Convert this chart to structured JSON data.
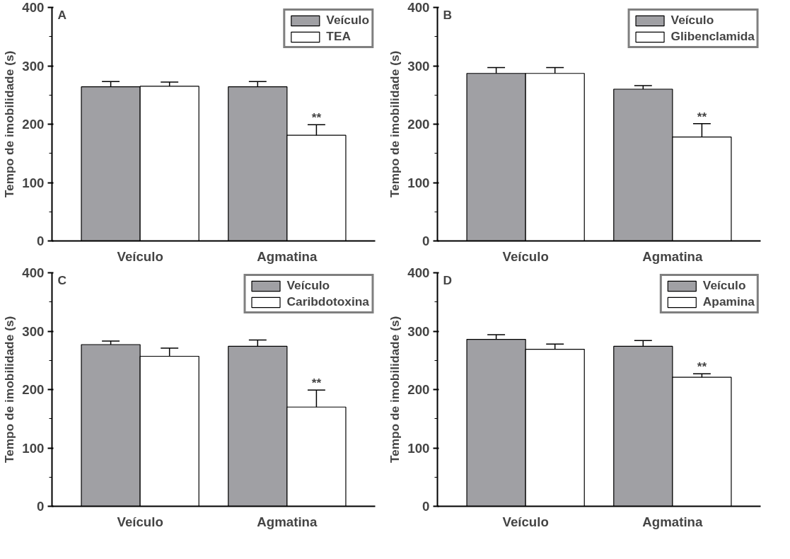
{
  "chart_data": [
    {
      "type": "bar",
      "title": "A",
      "ylabel": "Tempo de imobilidade (s)",
      "categories": [
        "Veículo",
        "Agmatina"
      ],
      "ylim": [
        0,
        400
      ],
      "yticks": [
        0,
        100,
        200,
        300,
        400
      ],
      "grid": false,
      "legend": "top right",
      "annotations": [
        {
          "text": "**",
          "x": "Agmatina",
          "y": 199
        }
      ],
      "series": [
        {
          "name": "Veículo",
          "color": "#a0a0a4",
          "values": [
            264,
            264
          ],
          "errors": [
            9,
            9
          ]
        },
        {
          "name": "TEA",
          "color": "#ffffff",
          "values": [
            265,
            181
          ],
          "errors": [
            7,
            18
          ]
        }
      ]
    },
    {
      "type": "bar",
      "title": "B",
      "ylabel": "Tempo de imobilidade (s)",
      "categories": [
        "Veículo",
        "Agmatina"
      ],
      "ylim": [
        0,
        400
      ],
      "yticks": [
        0,
        100,
        200,
        300,
        400
      ],
      "grid": false,
      "legend": "top right",
      "annotations": [
        {
          "text": "**",
          "x": "Agmatina",
          "y": 201
        }
      ],
      "series": [
        {
          "name": "Veículo",
          "color": "#a0a0a4",
          "values": [
            287,
            260
          ],
          "errors": [
            10,
            6
          ]
        },
        {
          "name": "Glibenclamida",
          "color": "#ffffff",
          "values": [
            287,
            178
          ],
          "errors": [
            10,
            23
          ]
        }
      ]
    },
    {
      "type": "bar",
      "title": "C",
      "ylabel": "Tempo de imobilidade (s)",
      "categories": [
        "Veículo",
        "Agmatina"
      ],
      "ylim": [
        0,
        400
      ],
      "yticks": [
        0,
        100,
        200,
        300,
        400
      ],
      "grid": false,
      "legend": "top right",
      "annotations": [
        {
          "text": "**",
          "x": "Agmatina",
          "y": 199
        }
      ],
      "series": [
        {
          "name": "Veículo",
          "color": "#a0a0a4",
          "values": [
            277,
            274
          ],
          "errors": [
            6,
            11
          ]
        },
        {
          "name": "Caribdotoxina",
          "color": "#ffffff",
          "values": [
            257,
            170
          ],
          "errors": [
            14,
            29
          ]
        }
      ]
    },
    {
      "type": "bar",
      "title": "D",
      "ylabel": "Tempo de imobilidade (s)",
      "categories": [
        "Veículo",
        "Agmatina"
      ],
      "ylim": [
        0,
        400
      ],
      "yticks": [
        0,
        100,
        200,
        300,
        400
      ],
      "grid": false,
      "legend": "top right",
      "annotations": [
        {
          "text": "**",
          "x": "Agmatina",
          "y": 227
        }
      ],
      "series": [
        {
          "name": "Veículo",
          "color": "#a0a0a4",
          "values": [
            286,
            274
          ],
          "errors": [
            8,
            10
          ]
        },
        {
          "name": "Apamina",
          "color": "#ffffff",
          "values": [
            269,
            221
          ],
          "errors": [
            9,
            6
          ]
        }
      ]
    }
  ]
}
